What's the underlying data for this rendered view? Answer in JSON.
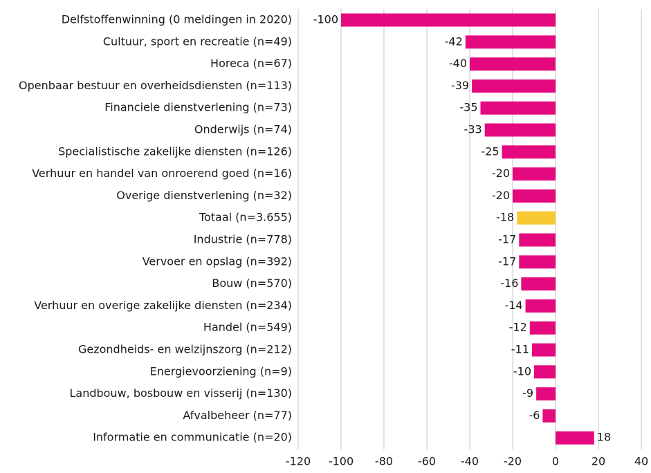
{
  "chart_data": {
    "type": "barh",
    "categories": [
      "Delfstoffenwinning (0 meldingen in 2020)",
      "Cultuur, sport en recreatie (n=49)",
      "Horeca (n=67)",
      "Openbaar bestuur en overheidsdiensten (n=113)",
      "Financiele dienstverlening (n=73)",
      "Onderwijs (n=74)",
      "Specialistische zakelijke diensten (n=126)",
      "Verhuur en handel van onroerend goed (n=16)",
      "Overige dienstverlening (n=32)",
      "Totaal (n=3.655)",
      "Industrie (n=778)",
      "Vervoer en opslag (n=392)",
      "Bouw (n=570)",
      "Verhuur en overige zakelijke diensten (n=234)",
      "Handel (n=549)",
      "Gezondheids- en welzijnszorg (n=212)",
      "Energievoorziening (n=9)",
      "Landbouw, bosbouw en visserij (n=130)",
      "Afvalbeheer (n=77)",
      "Informatie en communicatie (n=20)"
    ],
    "values": [
      -100,
      -42,
      -40,
      -39,
      -35,
      -33,
      -25,
      -20,
      -20,
      -18,
      -17,
      -17,
      -16,
      -14,
      -12,
      -11,
      -10,
      -9,
      -6,
      18
    ],
    "colors": [
      "#e5097f",
      "#e5097f",
      "#e5097f",
      "#e5097f",
      "#e5097f",
      "#e5097f",
      "#e5097f",
      "#e5097f",
      "#e5097f",
      "#f9c933",
      "#e5097f",
      "#e5097f",
      "#e5097f",
      "#e5097f",
      "#e5097f",
      "#e5097f",
      "#e5097f",
      "#e5097f",
      "#e5097f",
      "#e5097f"
    ],
    "xlim": [
      -120,
      40
    ],
    "xticks": [
      -120,
      -100,
      -80,
      -60,
      -40,
      -20,
      0,
      20,
      40
    ],
    "grid": true
  }
}
